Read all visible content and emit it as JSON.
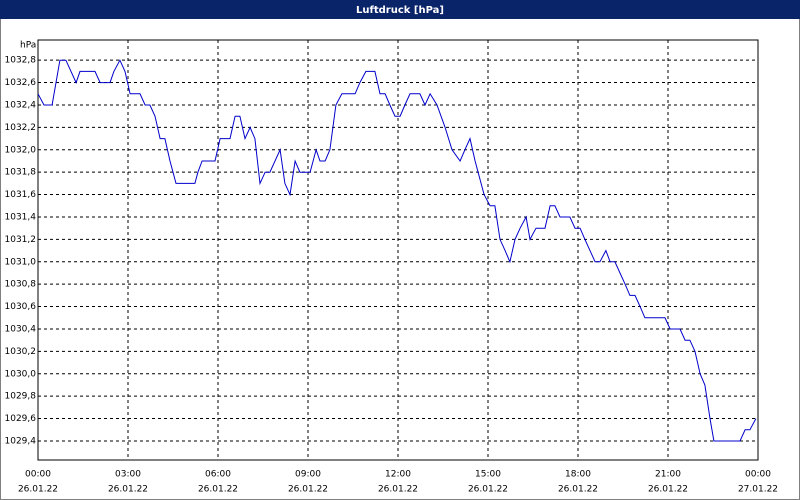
{
  "chart_data": {
    "type": "line",
    "title": "Luftdruck [hPa]",
    "y_label": "hPa",
    "x": [
      0,
      0.2,
      0.47,
      0.73,
      0.93,
      1.27,
      1.4,
      1.9,
      2.07,
      2.4,
      2.53,
      2.73,
      2.9,
      3.07,
      3.4,
      3.57,
      3.73,
      3.9,
      4.07,
      4.23,
      4.4,
      4.6,
      5.23,
      5.33,
      5.47,
      5.9,
      6.07,
      6.4,
      6.57,
      6.73,
      6.9,
      7.07,
      7.23,
      7.4,
      7.57,
      7.73,
      8.07,
      8.23,
      8.4,
      8.57,
      8.73,
      9.07,
      9.27,
      9.4,
      9.57,
      9.73,
      9.93,
      10.13,
      10.57,
      10.73,
      10.93,
      11.23,
      11.4,
      11.57,
      11.73,
      11.9,
      12.07,
      12.23,
      12.4,
      12.73,
      12.9,
      13.07,
      13.3,
      13.57,
      13.8,
      14.07,
      14.23,
      14.4,
      14.57,
      14.67,
      14.87,
      15.07,
      15.23,
      15.4,
      15.57,
      15.73,
      15.9,
      16.07,
      16.27,
      16.4,
      16.6,
      16.9,
      17.07,
      17.23,
      17.4,
      17.73,
      17.9,
      18.07,
      18.23,
      18.4,
      18.57,
      18.73,
      18.93,
      19.07,
      19.23,
      19.4,
      19.57,
      19.73,
      19.9,
      20.07,
      20.23,
      20.9,
      21.07,
      21.4,
      21.57,
      21.73,
      21.9,
      22.07,
      22.23,
      22.4,
      22.53,
      23.4,
      23.57,
      23.73,
      23.93
    ],
    "values": [
      1032.5,
      1032.4,
      1032.4,
      1032.8,
      1032.8,
      1032.6,
      1032.7,
      1032.7,
      1032.6,
      1032.6,
      1032.7,
      1032.8,
      1032.7,
      1032.5,
      1032.5,
      1032.4,
      1032.4,
      1032.3,
      1032.1,
      1032.1,
      1031.9,
      1031.7,
      1031.7,
      1031.8,
      1031.9,
      1031.9,
      1032.1,
      1032.1,
      1032.3,
      1032.3,
      1032.1,
      1032.2,
      1032.1,
      1031.7,
      1031.8,
      1031.8,
      1032.0,
      1031.7,
      1031.6,
      1031.9,
      1031.8,
      1031.8,
      1032.0,
      1031.9,
      1031.9,
      1032.0,
      1032.4,
      1032.5,
      1032.5,
      1032.6,
      1032.7,
      1032.7,
      1032.5,
      1032.5,
      1032.4,
      1032.3,
      1032.3,
      1032.4,
      1032.5,
      1032.5,
      1032.4,
      1032.5,
      1032.4,
      1032.2,
      1032.0,
      1031.9,
      1032.0,
      1032.1,
      1031.9,
      1031.8,
      1031.6,
      1031.5,
      1031.5,
      1031.2,
      1031.1,
      1031.0,
      1031.2,
      1031.3,
      1031.4,
      1031.2,
      1031.3,
      1031.3,
      1031.5,
      1031.5,
      1031.4,
      1031.4,
      1031.3,
      1031.3,
      1031.2,
      1031.1,
      1031.0,
      1031.0,
      1031.1,
      1031.0,
      1031.0,
      1030.9,
      1030.8,
      1030.7,
      1030.7,
      1030.6,
      1030.5,
      1030.5,
      1030.4,
      1030.4,
      1030.3,
      1030.3,
      1030.2,
      1030.0,
      1029.9,
      1029.6,
      1029.4,
      1029.4,
      1029.5,
      1029.5,
      1029.6
    ],
    "color": "#0000cc",
    "xlim": [
      0,
      24
    ],
    "xticks": [
      {
        "value": 0,
        "label": "00:00"
      },
      {
        "value": 3,
        "label": "03:00"
      },
      {
        "value": 6,
        "label": "06:00"
      },
      {
        "value": 9,
        "label": "09:00"
      },
      {
        "value": 12,
        "label": "12:00"
      },
      {
        "value": 15,
        "label": "15:00"
      },
      {
        "value": 18,
        "label": "18:00"
      },
      {
        "value": 21,
        "label": "21:00"
      },
      {
        "value": 24,
        "label": "00:00"
      }
    ],
    "xtick_dates": [
      "26.01.22",
      "26.01.22",
      "26.01.22",
      "26.01.22",
      "26.01.22",
      "26.01.22",
      "26.01.22",
      "26.01.22",
      "27.01.22"
    ],
    "ylim": [
      1029.23,
      1032.98
    ],
    "yticks": [
      {
        "value": 1029.4,
        "label": "1029,4"
      },
      {
        "value": 1029.6,
        "label": "1029,6"
      },
      {
        "value": 1029.8,
        "label": "1029,8"
      },
      {
        "value": 1030,
        "label": "1030,0"
      },
      {
        "value": 1030.2,
        "label": "1030,2"
      },
      {
        "value": 1030.4,
        "label": "1030,4"
      },
      {
        "value": 1030.6,
        "label": "1030,6"
      },
      {
        "value": 1030.8,
        "label": "1030,8"
      },
      {
        "value": 1031,
        "label": "1031,0"
      },
      {
        "value": 1031.2,
        "label": "1031,2"
      },
      {
        "value": 1031.4,
        "label": "1031,4"
      },
      {
        "value": 1031.6,
        "label": "1031,6"
      },
      {
        "value": 1031.8,
        "label": "1031,8"
      },
      {
        "value": 1032,
        "label": "1032,0"
      },
      {
        "value": 1032.2,
        "label": "1032,2"
      },
      {
        "value": 1032.4,
        "label": "1032,4"
      },
      {
        "value": 1032.6,
        "label": "1032,6"
      },
      {
        "value": 1032.8,
        "label": "1032,8"
      }
    ],
    "grid": true
  }
}
